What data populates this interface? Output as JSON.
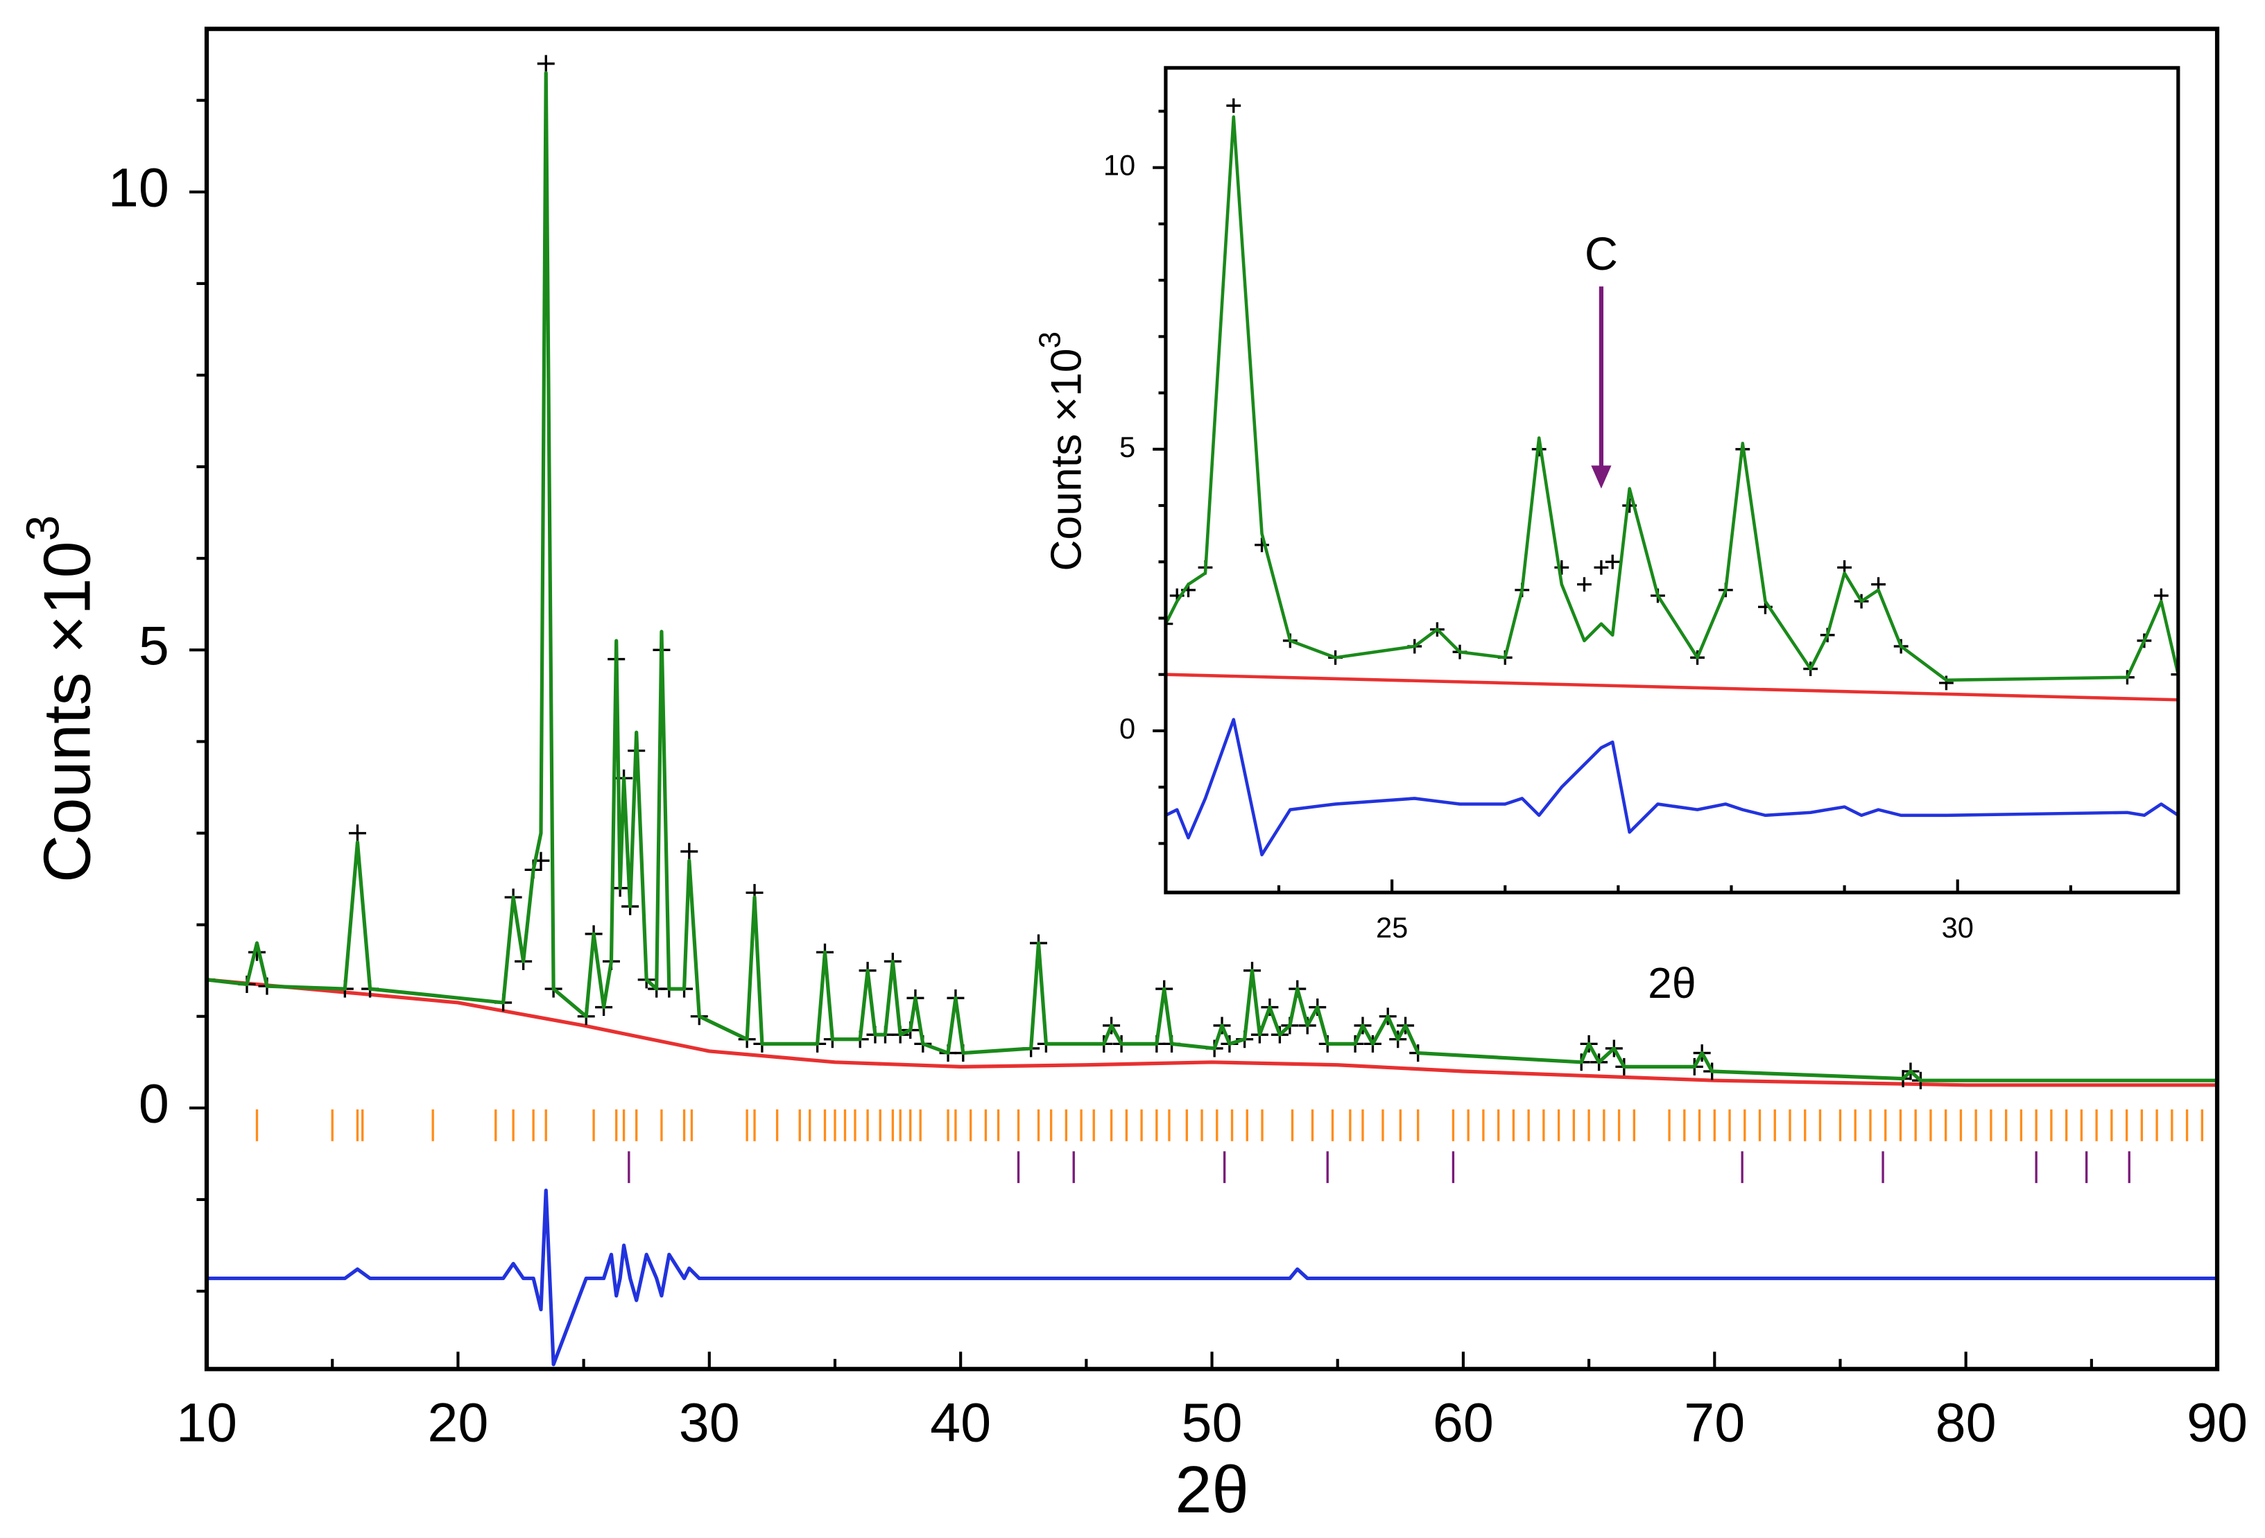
{
  "chart_data": [
    {
      "type": "line",
      "x_label": "2θ",
      "y_label": "Counts ×10",
      "y_label_superscript": "3",
      "xlim": [
        10,
        90
      ],
      "ylim": [
        -2.85,
        11.78
      ],
      "xticks": [
        10,
        20,
        30,
        40,
        50,
        60,
        70,
        80,
        90
      ],
      "xticks_minor": [
        15,
        25,
        35,
        45,
        55,
        65,
        75,
        85
      ],
      "yticks": [
        0,
        5,
        10
      ],
      "yticks_minor": [
        -2,
        -1,
        1,
        2,
        3,
        4,
        6,
        7,
        8,
        9,
        11
      ],
      "x": [
        10,
        11.6,
        12,
        12.4,
        15.5,
        16,
        16.5,
        21.8,
        22.2,
        22.6,
        23.0,
        23.3,
        23.5,
        23.8,
        25.1,
        25.4,
        25.8,
        26.1,
        26.3,
        26.45,
        26.6,
        26.85,
        27.1,
        27.5,
        27.9,
        28.1,
        28.4,
        29.0,
        29.2,
        29.6,
        31.5,
        31.8,
        32.1,
        34.3,
        34.6,
        34.9,
        36.0,
        36.3,
        36.6,
        37.0,
        37.3,
        37.6,
        38.0,
        38.2,
        38.5,
        39.5,
        39.8,
        40.1,
        42.8,
        43.1,
        43.4,
        45.7,
        46,
        46.4,
        47.8,
        48.1,
        48.4,
        50.1,
        50.4,
        50.7,
        51.3,
        51.6,
        51.9,
        52.3,
        52.7,
        53.1,
        53.4,
        53.8,
        54.2,
        54.6,
        55.7,
        56,
        56.4,
        57,
        57.4,
        57.7,
        58.2,
        64.7,
        65,
        65.4,
        66,
        66.4,
        69.2,
        69.5,
        69.9,
        77.5,
        77.8,
        78.2,
        90
      ],
      "series": [
        {
          "color": "#e83030",
          "x": [
            10,
            16,
            20,
            25,
            30,
            35,
            40,
            45,
            50,
            55,
            60,
            70,
            80,
            90
          ],
          "values": [
            1.4,
            1.25,
            1.15,
            0.9,
            0.62,
            0.5,
            0.45,
            0.47,
            0.5,
            0.47,
            0.4,
            0.3,
            0.25,
            0.25
          ]
        },
        {
          "color": "#000000",
          "marker": "plus",
          "values": [
            1.4,
            1.35,
            1.7,
            1.33,
            1.3,
            3.0,
            1.3,
            1.15,
            2.3,
            1.6,
            2.6,
            2.7,
            11.4,
            1.3,
            1.0,
            1.9,
            1.1,
            1.6,
            4.9,
            2.4,
            3.6,
            2.2,
            3.9,
            1.4,
            1.3,
            5.0,
            1.3,
            1.3,
            2.8,
            1.0,
            0.75,
            2.35,
            0.7,
            0.7,
            1.7,
            0.75,
            0.75,
            1.5,
            0.8,
            0.8,
            1.6,
            0.8,
            0.85,
            1.2,
            0.7,
            0.6,
            1.2,
            0.6,
            0.65,
            1.8,
            0.7,
            0.7,
            0.9,
            0.7,
            0.7,
            1.3,
            0.7,
            0.65,
            0.9,
            0.7,
            0.75,
            1.5,
            0.8,
            1.1,
            0.8,
            0.9,
            1.3,
            0.9,
            1.1,
            0.7,
            0.7,
            0.9,
            0.7,
            1.0,
            0.75,
            0.9,
            0.6,
            0.5,
            0.7,
            0.5,
            0.65,
            0.45,
            0.45,
            0.6,
            0.4,
            0.32,
            0.4,
            0.3,
            0.3
          ]
        },
        {
          "color": "#1a8a1a",
          "values": [
            1.4,
            1.35,
            1.8,
            1.33,
            1.3,
            2.9,
            1.3,
            1.15,
            2.3,
            1.6,
            2.6,
            3.0,
            11.3,
            1.3,
            1.0,
            1.9,
            1.1,
            1.6,
            5.1,
            2.4,
            3.6,
            2.2,
            4.1,
            1.4,
            1.3,
            5.2,
            1.3,
            1.3,
            2.7,
            1.0,
            0.75,
            2.3,
            0.7,
            0.7,
            1.7,
            0.75,
            0.75,
            1.5,
            0.8,
            0.8,
            1.6,
            0.8,
            0.85,
            1.2,
            0.7,
            0.6,
            1.2,
            0.6,
            0.65,
            1.8,
            0.7,
            0.7,
            0.9,
            0.7,
            0.7,
            1.3,
            0.7,
            0.65,
            0.9,
            0.7,
            0.75,
            1.5,
            0.8,
            1.1,
            0.8,
            0.9,
            1.3,
            0.9,
            1.1,
            0.7,
            0.7,
            0.9,
            0.7,
            1.0,
            0.75,
            0.9,
            0.6,
            0.5,
            0.7,
            0.5,
            0.65,
            0.45,
            0.45,
            0.6,
            0.4,
            0.32,
            0.4,
            0.3,
            0.3
          ]
        },
        {
          "color": "#2233dd",
          "values": [
            -1.86,
            -1.86,
            -1.86,
            -1.86,
            -1.86,
            -1.76,
            -1.86,
            -1.86,
            -1.7,
            -1.86,
            -1.86,
            -2.2,
            -0.9,
            -2.8,
            -1.86,
            -1.86,
            -1.86,
            -1.6,
            -2.05,
            -1.86,
            -1.5,
            -1.86,
            -2.1,
            -1.6,
            -1.86,
            -2.05,
            -1.6,
            -1.86,
            -1.75,
            -1.86,
            -1.86,
            -1.86,
            -1.86,
            -1.86,
            -1.86,
            -1.86,
            -1.86,
            -1.86,
            -1.86,
            -1.86,
            -1.86,
            -1.86,
            -1.86,
            -1.86,
            -1.86,
            -1.86,
            -1.86,
            -1.86,
            -1.86,
            -1.86,
            -1.86,
            -1.86,
            -1.86,
            -1.86,
            -1.86,
            -1.86,
            -1.86,
            -1.86,
            -1.86,
            -1.86,
            -1.86,
            -1.86,
            -1.86,
            -1.86,
            -1.86,
            -1.86,
            -1.76,
            -1.86,
            -1.86,
            -1.86,
            -1.86,
            -1.86,
            -1.86,
            -1.86,
            -1.86,
            -1.86,
            -1.86,
            -1.86,
            -1.86,
            -1.86,
            -1.86,
            -1.86,
            -1.86,
            -1.86,
            -1.86,
            -1.86,
            -1.86,
            -1.86,
            -1.86
          ]
        }
      ],
      "reflections": [
        {
          "color": "#ff8c1a",
          "positions": [
            12,
            15,
            16,
            16.2,
            19,
            21.5,
            22.2,
            23,
            23.5,
            25.4,
            26.3,
            26.6,
            27.1,
            28.1,
            29,
            29.3,
            31.5,
            31.8,
            32.7,
            33.6,
            34,
            34.6,
            35,
            35.4,
            35.8,
            36.3,
            36.8,
            37.3,
            37.6,
            38,
            38.4,
            39.5,
            39.8,
            40.4,
            41,
            41.5,
            42.3,
            43.1,
            43.6,
            44.2,
            44.8,
            45.3,
            46,
            46.6,
            47.2,
            47.8,
            48.3,
            49,
            49.6,
            50.2,
            50.8,
            51.4,
            52,
            53.2,
            54,
            54.8,
            55.5,
            56,
            56.8,
            57.5,
            58.2,
            59.6,
            60.2,
            60.8,
            61.4,
            62,
            62.6,
            63.2,
            63.8,
            64.4,
            65.0,
            65.6,
            66.2,
            66.8,
            68.2,
            68.8,
            69.4,
            70,
            70.6,
            71.2,
            71.8,
            72.4,
            73,
            73.6,
            74.2,
            75,
            75.6,
            76.2,
            76.8,
            77.4,
            78,
            78.6,
            79.2,
            79.8,
            80.4,
            81,
            81.6,
            82.2,
            82.8,
            83.4,
            84,
            84.6,
            85.2,
            85.8,
            86.4,
            87,
            87.6,
            88.2,
            88.8,
            89.4
          ]
        },
        {
          "color": "#7a1a7a",
          "positions": [
            26.8,
            42.3,
            44.5,
            50.5,
            54.6,
            59.6,
            71.1,
            76.7,
            82.8,
            84.8,
            86.5
          ]
        }
      ]
    },
    {
      "type": "line",
      "x_label": "2θ",
      "y_label": "Counts ×10",
      "y_label_superscript": "3",
      "xlim": [
        23.0,
        31.95
      ],
      "ylim": [
        -2.87,
        11.77
      ],
      "xticks": [
        25,
        30
      ],
      "xticks_minor": [
        24,
        26,
        27,
        28,
        29,
        31
      ],
      "yticks": [
        0,
        5,
        10
      ],
      "yticks_minor": [
        -2,
        -1,
        1,
        2,
        3,
        4,
        6,
        7,
        8,
        9,
        11
      ],
      "x": [
        23.0,
        23.1,
        23.2,
        23.35,
        23.6,
        23.85,
        24.1,
        24.5,
        25.2,
        25.4,
        25.6,
        26.0,
        26.15,
        26.3,
        26.5,
        26.7,
        26.85,
        26.95,
        27.1,
        27.35,
        27.7,
        27.95,
        28.1,
        28.3,
        28.7,
        28.85,
        29.0,
        29.15,
        29.3,
        29.5,
        29.9,
        31.5,
        31.65,
        31.8,
        31.95
      ],
      "series": [
        {
          "color": "#e83030",
          "x": [
            23.0,
            31.95
          ],
          "values": [
            1.0,
            0.55
          ]
        },
        {
          "color": "#000000",
          "marker": "plus",
          "values": [
            1.9,
            2.4,
            2.5,
            2.9,
            11.1,
            3.3,
            1.6,
            1.3,
            1.5,
            1.8,
            1.4,
            1.3,
            2.5,
            5.0,
            2.9,
            2.6,
            2.9,
            3.0,
            4.0,
            2.4,
            1.3,
            2.5,
            5.0,
            2.2,
            1.1,
            1.7,
            2.9,
            2.3,
            2.6,
            1.5,
            0.85,
            0.95,
            1.6,
            2.4,
            1.0
          ]
        },
        {
          "color": "#1a8a1a",
          "values": [
            1.9,
            2.3,
            2.6,
            2.8,
            10.9,
            3.5,
            1.6,
            1.3,
            1.5,
            1.8,
            1.4,
            1.3,
            2.5,
            5.2,
            2.6,
            1.6,
            1.9,
            1.7,
            4.3,
            2.4,
            1.3,
            2.5,
            5.1,
            2.3,
            1.1,
            1.7,
            2.8,
            2.3,
            2.5,
            1.5,
            0.9,
            0.95,
            1.6,
            2.3,
            1.0
          ]
        },
        {
          "color": "#2233dd",
          "values": [
            -1.5,
            -1.4,
            -1.9,
            -1.2,
            0.2,
            -2.2,
            -1.4,
            -1.3,
            -1.2,
            -1.25,
            -1.3,
            -1.3,
            -1.2,
            -1.5,
            -1.0,
            -0.6,
            -0.3,
            -0.2,
            -1.8,
            -1.3,
            -1.4,
            -1.3,
            -1.4,
            -1.5,
            -1.45,
            -1.4,
            -1.35,
            -1.5,
            -1.4,
            -1.5,
            -1.5,
            -1.45,
            -1.5,
            -1.3,
            -1.5
          ]
        }
      ],
      "annotations": [
        {
          "text": "C",
          "color": "#7a1a7a",
          "x": 26.85,
          "y": 4.3
        }
      ]
    }
  ]
}
